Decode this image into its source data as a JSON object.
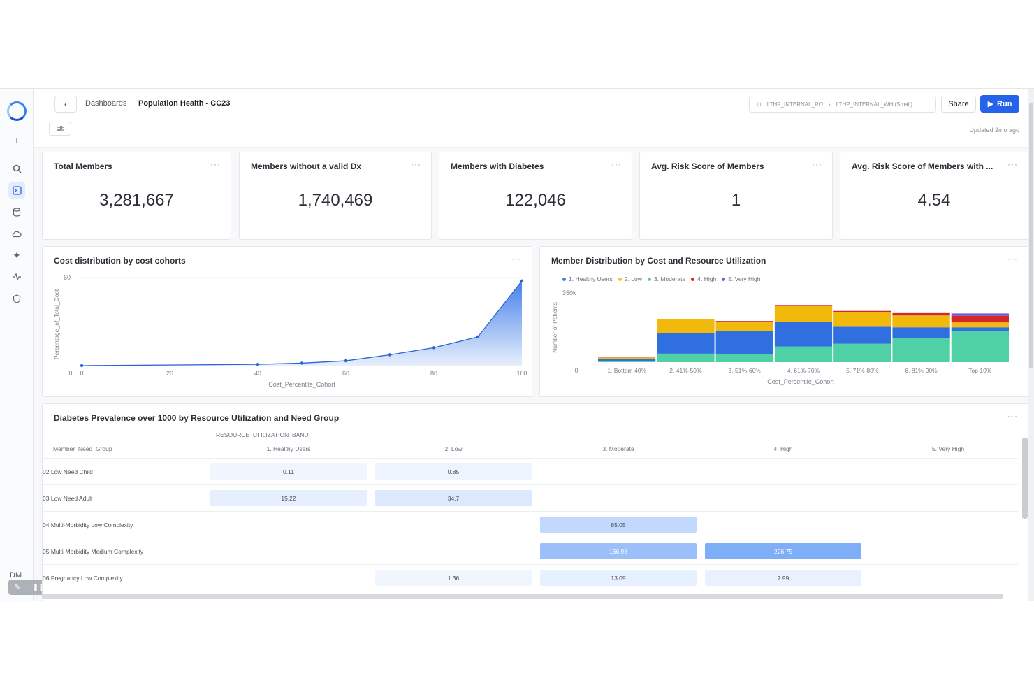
{
  "sidebar": {
    "avatar": "DM",
    "icons": [
      "plus-icon",
      "search-icon",
      "terminal-icon",
      "database-icon",
      "cloud-icon",
      "sparkle-icon",
      "activity-icon",
      "shield-icon"
    ]
  },
  "header": {
    "back": "‹",
    "breadcrumb_root": "Dashboards",
    "breadcrumb_current": "Population Health - CC23",
    "connection_role": "LTHP_INTERNAL_RO",
    "connection_warehouse": "LTHP_INTERNAL_WH (Small)",
    "share_label": "Share",
    "run_label": "Run",
    "updated": "Updated 2mo ago",
    "filter_icon": "sliders-icon"
  },
  "kpis": [
    {
      "title": "Total Members",
      "value": "3,281,667"
    },
    {
      "title": "Members without a valid Dx",
      "value": "1,740,469"
    },
    {
      "title": "Members with Diabetes",
      "value": "122,046"
    },
    {
      "title": "Avg. Risk Score of Members",
      "value": "1"
    },
    {
      "title": "Avg. Risk Score of Members with ...",
      "value": "4.54"
    }
  ],
  "menu_dots": "···",
  "chart_data": [
    {
      "type": "area",
      "title": "Cost distribution by cost cohorts",
      "xlabel": "Cost_Percentile_Cohort",
      "ylabel": "Percentage_of_Total_Cost",
      "x": [
        0,
        40,
        50,
        60,
        70,
        80,
        90,
        100
      ],
      "y": [
        0,
        0.9,
        1.7,
        3.3,
        7.4,
        12.2,
        19.6,
        57.7
      ],
      "xlim": [
        0,
        100
      ],
      "ylim": [
        0,
        60
      ],
      "xticks": [
        "0",
        "20",
        "40",
        "60",
        "80",
        "100"
      ],
      "yticks": [
        "0",
        "60"
      ],
      "color": "#3b7be8"
    },
    {
      "type": "bar",
      "stacked": true,
      "title": "Member Distribution by Cost and Resource Utilization",
      "xlabel": "Cost_Percentile_Cohort",
      "ylabel": "Number of Patients",
      "categories": [
        "1. Bottom 40%",
        "2. 41%-50%",
        "3. 51%-60%",
        "4. 61%-70%",
        "5. 71%-80%",
        "6. 81%-90%",
        "Top 10%"
      ],
      "ylim": [
        0,
        350000
      ],
      "yticks": [
        "0",
        "350k"
      ],
      "legend_position": "top-left",
      "series": [
        {
          "name": "1. Healthy Users",
          "color": "#3b82f6",
          "values": [
            5000,
            50000,
            55000,
            65000,
            90000,
            120000,
            160000
          ]
        },
        {
          "name": "2. Low",
          "color": "#f5c518",
          "values": [
            0,
            0,
            0,
            0,
            0,
            0,
            0
          ]
        },
        {
          "name": "3. Moderate",
          "color": "#4fd1a5",
          "values": [
            0,
            0,
            0,
            0,
            0,
            0,
            0
          ]
        },
        {
          "name": "4. High",
          "color": "#e02424",
          "values": [
            0,
            0,
            0,
            0,
            0,
            0,
            0
          ]
        },
        {
          "name": "5. Very High",
          "color": "#6d5bd0",
          "values": [
            0,
            0,
            0,
            0,
            0,
            0,
            0
          ]
        }
      ],
      "stack_values": {
        "green": [
          3000,
          43000,
          40000,
          79000,
          93000,
          123000,
          158000
        ],
        "blue": [
          13000,
          103000,
          117000,
          125000,
          86000,
          53000,
          18000
        ],
        "yellow": [
          7000,
          70000,
          48000,
          81000,
          75000,
          60000,
          25000
        ],
        "red": [
          1000,
          3000,
          3000,
          4000,
          5000,
          12000,
          33000
        ],
        "purple": [
          0,
          0,
          0,
          0,
          0,
          0,
          12000
        ]
      }
    }
  ],
  "pivot": {
    "title": "Diabetes Prevalence over 1000 by Resource Utilization and Need Group",
    "band_header": "RESOURCE_UTILIZATION_BAND",
    "row_header": "Member_Need_Group",
    "columns": [
      "1. Healthy Users",
      "2. Low",
      "3. Moderate",
      "4. High",
      "5. Very High"
    ],
    "rows": [
      {
        "label": "02 Low Need Child",
        "cells": [
          "0.11",
          "0.85",
          "",
          "",
          ""
        ],
        "levels": [
          0.03,
          0.05,
          0,
          0,
          0
        ]
      },
      {
        "label": "03 Low Need Adult",
        "cells": [
          "15.22",
          "34.7",
          "",
          "",
          ""
        ],
        "levels": [
          0.12,
          0.2,
          0,
          0,
          0
        ]
      },
      {
        "label": "04 Multi-Morbidity Low Complexity",
        "cells": [
          "",
          "",
          "85.05",
          "",
          ""
        ],
        "levels": [
          0,
          0,
          0.4,
          0,
          0
        ]
      },
      {
        "label": "05 Multi-Morbidity Medium Complexity",
        "cells": [
          "",
          "",
          "166.98",
          "226.75",
          ""
        ],
        "levels": [
          0,
          0,
          0.72,
          0.95,
          0
        ]
      },
      {
        "label": "06 Pregnancy Low Complexity",
        "cells": [
          "",
          "1.36",
          "13.09",
          "7.99",
          ""
        ],
        "levels": [
          0,
          0.04,
          0.1,
          0.08,
          0
        ]
      }
    ]
  }
}
